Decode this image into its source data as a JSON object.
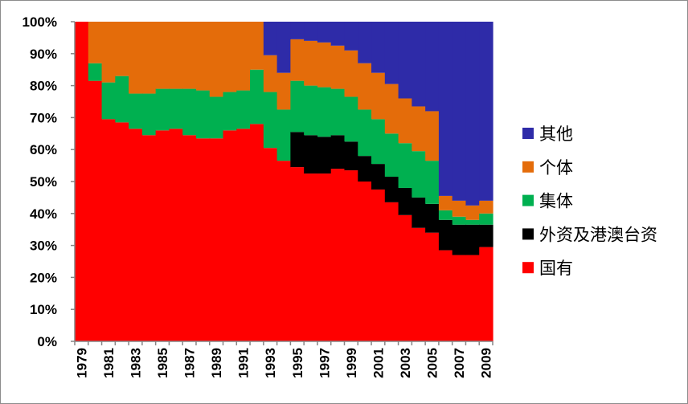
{
  "chart_data": {
    "type": "bar",
    "stacked": "percent",
    "title": "",
    "xlabel": "",
    "ylabel": "",
    "ylim": [
      0,
      100
    ],
    "yticks": [
      "0%",
      "10%",
      "20%",
      "30%",
      "40%",
      "50%",
      "60%",
      "70%",
      "80%",
      "90%",
      "100%"
    ],
    "categories": [
      1979,
      1980,
      1981,
      1982,
      1983,
      1984,
      1985,
      1986,
      1987,
      1988,
      1989,
      1990,
      1991,
      1992,
      1993,
      1994,
      1995,
      1996,
      1997,
      1998,
      1999,
      2000,
      2001,
      2002,
      2003,
      2004,
      2005,
      2006,
      2007,
      2008,
      2009
    ],
    "xtick_labels": [
      "1979",
      "1981",
      "1983",
      "1985",
      "1987",
      "1989",
      "1991",
      "1993",
      "1995",
      "1997",
      "1999",
      "2001",
      "2003",
      "2005",
      "2007",
      "2009"
    ],
    "legend_position": "right",
    "series": [
      {
        "name": "国有",
        "color": "#ff0000",
        "values": [
          100,
          81.5,
          69.5,
          68.5,
          66.5,
          64.5,
          66,
          66.5,
          64.5,
          63.5,
          63.5,
          66,
          66.5,
          68,
          60.5,
          56.5,
          54.5,
          52.5,
          52.5,
          54,
          53.5,
          50,
          47.5,
          43.5,
          39.5,
          35.5,
          34,
          28.5,
          27,
          27,
          29.5
        ]
      },
      {
        "name": "外资及港澳台资",
        "color": "#000000",
        "values": [
          0,
          0,
          0,
          0,
          0,
          0,
          0,
          0,
          0,
          0,
          0,
          0,
          0,
          0,
          0,
          0,
          11,
          12,
          11.5,
          10.5,
          9,
          8,
          8,
          8,
          8.5,
          9.5,
          9,
          9.5,
          9.5,
          9.5,
          7
        ]
      },
      {
        "name": "集体",
        "color": "#00b050",
        "values": [
          0,
          5.5,
          11.5,
          14.5,
          11,
          13,
          13,
          12.5,
          14.5,
          15,
          13,
          12,
          12,
          17,
          17.5,
          16,
          16,
          15.5,
          15.5,
          14.5,
          14,
          14.5,
          14,
          13.5,
          14,
          14.5,
          13.5,
          3,
          2.5,
          1.5,
          3.5
        ]
      },
      {
        "name": "个体",
        "color": "#e46c0a",
        "values": [
          0,
          13,
          19,
          17,
          22.5,
          22.5,
          21,
          21,
          21,
          21.5,
          23.5,
          22,
          21.5,
          15,
          11.5,
          11.5,
          13,
          14,
          14,
          13.5,
          14.5,
          14.5,
          14.5,
          15.5,
          14,
          14,
          15.5,
          4.5,
          5,
          4.5,
          4
        ]
      },
      {
        "name": "其他",
        "color": "#2e2ba8",
        "values": [
          0,
          0,
          0,
          0,
          0,
          0,
          0,
          0,
          0,
          0,
          0,
          0,
          0,
          0,
          10.5,
          16,
          5.5,
          6,
          6.5,
          7.5,
          9,
          13,
          16,
          19.5,
          24,
          26.5,
          28,
          54.5,
          56,
          57.5,
          56
        ]
      }
    ],
    "legend_order": [
      "其他",
      "个体",
      "集体",
      "外资及港澳台资",
      "国有"
    ]
  }
}
